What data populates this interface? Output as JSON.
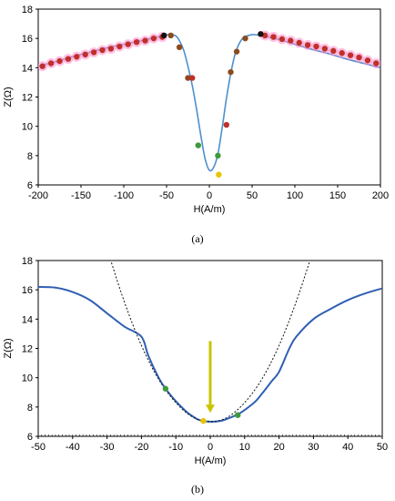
{
  "figure": {
    "panel_a_label": "(a)",
    "panel_b_label": "(b)"
  },
  "colors": {
    "curve": "#4f8fce",
    "curve_b": "#2f5fb3",
    "halo": "#ff8fd0",
    "red_marker": "#c0302a",
    "brown_marker": "#8b4a1c",
    "green_marker": "#3f9a3c",
    "yellow_marker": "#e8c400",
    "black_marker": "#111111",
    "arrow": "#c8c400",
    "parabola": "#111111"
  },
  "chart_data": [
    {
      "type": "line",
      "panel": "a",
      "xlabel": "H(A/m)",
      "ylabel": "Z(Ω)",
      "xlim": [
        -200,
        200
      ],
      "ylim": [
        6,
        18
      ],
      "xticks": [
        -200,
        -150,
        -100,
        -50,
        0,
        50,
        100,
        150,
        200
      ],
      "yticks": [
        6,
        8,
        10,
        12,
        14,
        16,
        18
      ],
      "grid": false,
      "series": [
        {
          "kind": "curve",
          "x": [
            -200,
            -180,
            -160,
            -140,
            -120,
            -100,
            -80,
            -60,
            -50,
            -40,
            -35,
            -30,
            -25,
            -20,
            -15,
            -10,
            -5,
            0,
            5,
            10,
            15,
            20,
            25,
            30,
            35,
            40,
            50,
            60,
            80,
            100,
            120,
            140,
            160,
            180,
            200
          ],
          "y": [
            14.1,
            14.4,
            14.75,
            15.05,
            15.35,
            15.6,
            15.85,
            16.1,
            16.25,
            16.2,
            15.85,
            15.2,
            14.1,
            12.8,
            11.2,
            9.4,
            7.8,
            7.0,
            7.2,
            8.1,
            9.9,
            11.9,
            13.6,
            14.9,
            15.65,
            16.05,
            16.25,
            16.2,
            15.95,
            15.6,
            15.25,
            14.95,
            14.6,
            14.3,
            14.0
          ]
        },
        {
          "kind": "markers_red",
          "x": [
            -195,
            -185,
            -175,
            -165,
            -155,
            -145,
            -135,
            -125,
            -115,
            -105,
            -95,
            -85,
            -75,
            -65,
            -55,
            65,
            75,
            85,
            95,
            105,
            115,
            125,
            135,
            145,
            155,
            165,
            175,
            185,
            195
          ],
          "y": [
            14.1,
            14.3,
            14.45,
            14.6,
            14.75,
            14.9,
            15.05,
            15.2,
            15.3,
            15.45,
            15.6,
            15.75,
            15.85,
            16.0,
            16.1,
            16.2,
            16.1,
            15.95,
            15.85,
            15.7,
            15.55,
            15.45,
            15.3,
            15.15,
            15.0,
            14.85,
            14.7,
            14.5,
            14.3
          ]
        },
        {
          "kind": "markers_brown",
          "x": [
            -45,
            -35,
            -25,
            25,
            32,
            42
          ],
          "y": [
            16.2,
            15.4,
            13.3,
            13.7,
            15.1,
            16.0
          ]
        },
        {
          "kind": "markers_black",
          "x": [
            -53,
            60
          ],
          "y": [
            16.2,
            16.3
          ]
        },
        {
          "kind": "markers_red_low",
          "x": [
            -20,
            20
          ],
          "y": [
            13.3,
            10.1
          ]
        },
        {
          "kind": "markers_green",
          "x": [
            -13,
            10
          ],
          "y": [
            8.7,
            8.0
          ]
        },
        {
          "kind": "markers_yellow",
          "x": [
            11
          ],
          "y": [
            6.7
          ]
        }
      ]
    },
    {
      "type": "line",
      "panel": "b",
      "xlabel": "H(A/m)",
      "ylabel": "Z(Ω)",
      "xlim": [
        -50,
        50
      ],
      "ylim": [
        6,
        18
      ],
      "xticks": [
        -50,
        -40,
        -30,
        -20,
        -10,
        0,
        10,
        20,
        30,
        40,
        50
      ],
      "yticks": [
        6,
        8,
        10,
        12,
        14,
        16,
        18
      ],
      "grid": false,
      "series": [
        {
          "kind": "curve",
          "x": [
            -50,
            -45,
            -40,
            -35,
            -30,
            -25,
            -20,
            -18,
            -15,
            -13,
            -10,
            -7,
            -5,
            -3,
            0,
            3,
            5,
            8,
            10,
            13,
            15,
            18,
            20,
            23,
            25,
            30,
            35,
            40,
            45,
            50
          ],
          "y": [
            16.2,
            16.15,
            15.85,
            15.3,
            14.4,
            13.5,
            12.8,
            11.5,
            10.0,
            9.25,
            8.4,
            7.7,
            7.35,
            7.1,
            7.0,
            7.05,
            7.2,
            7.5,
            7.8,
            8.35,
            8.9,
            9.8,
            10.4,
            12.0,
            12.8,
            14.0,
            14.7,
            15.3,
            15.75,
            16.1
          ]
        },
        {
          "kind": "parabola",
          "x": [
            -30,
            -25,
            -20,
            -15,
            -10,
            -5,
            0,
            5,
            10,
            15,
            20,
            25,
            30,
            33
          ],
          "y": [
            18.8,
            15.2,
            12.2,
            9.9,
            8.3,
            7.3,
            7.0,
            7.3,
            8.3,
            9.9,
            12.2,
            15.2,
            18.8,
            21.4
          ]
        },
        {
          "kind": "markers_green",
          "x": [
            -13,
            8
          ],
          "y": [
            9.25,
            7.45
          ]
        },
        {
          "kind": "markers_yellow",
          "x": [
            -2
          ],
          "y": [
            7.05
          ]
        }
      ],
      "arrow": {
        "x": 0,
        "y_from": 12.5,
        "y_to": 7.6
      }
    }
  ]
}
